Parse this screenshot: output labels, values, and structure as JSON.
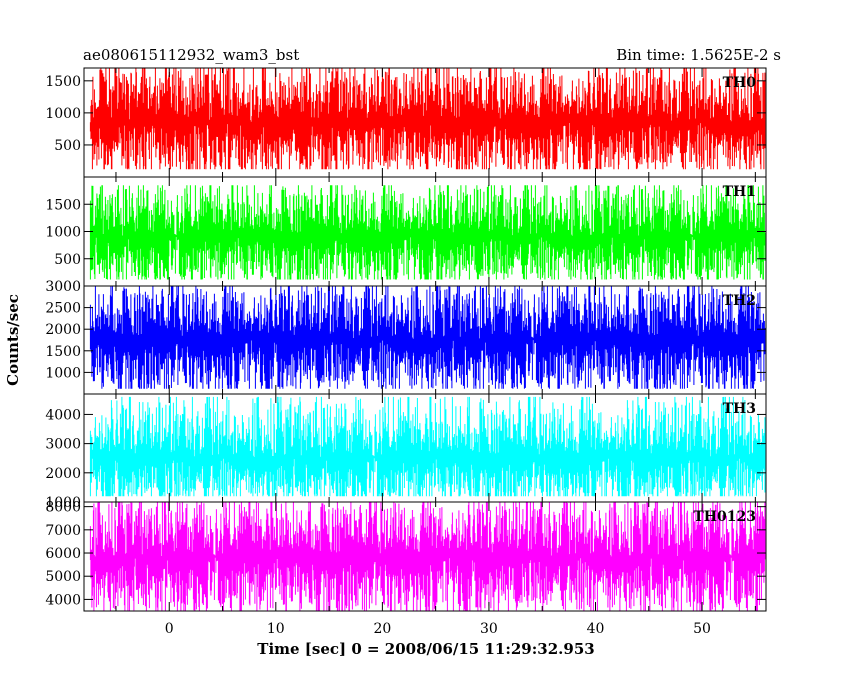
{
  "chart_data": {
    "type": "line",
    "title": "ae080615112932_wam3_bst",
    "subtitle": "Bin time: 1.5625E-2 s",
    "xlabel": "Time [sec] 0 = 2008/06/15 11:29:32.953",
    "ylabel": "Counts/sec",
    "xlim": [
      -8,
      56
    ],
    "x_ticks": [
      0,
      10,
      20,
      30,
      40,
      50
    ],
    "grid": false,
    "panels": [
      {
        "name": "TH0",
        "color": "#ff0000",
        "ylim": [
          0,
          1700
        ],
        "y_ticks": [
          500,
          1000,
          1500
        ],
        "mean": 850,
        "low": 120,
        "high": 1700,
        "spread": 0.55
      },
      {
        "name": "TH1",
        "color": "#00ff00",
        "ylim": [
          0,
          2000
        ],
        "y_ticks": [
          500,
          1000,
          1500
        ],
        "mean": 900,
        "low": 120,
        "high": 1850,
        "spread": 0.55
      },
      {
        "name": "TH2",
        "color": "#0000ff",
        "ylim": [
          500,
          3000
        ],
        "y_ticks": [
          1000,
          1500,
          2000,
          2500,
          3000
        ],
        "mean": 1750,
        "low": 620,
        "high": 3000,
        "spread": 0.55
      },
      {
        "name": "TH3",
        "color": "#00ffff",
        "ylim": [
          1000,
          4700
        ],
        "y_ticks": [
          1000,
          2000,
          3000,
          4000
        ],
        "mean": 2500,
        "low": 1200,
        "high": 4600,
        "spread": 0.55
      },
      {
        "name": "TH0123",
        "color": "#ff00ff",
        "ylim": [
          3500,
          8200
        ],
        "y_ticks": [
          4000,
          5000,
          6000,
          7000,
          8000
        ],
        "mean": 5800,
        "low": 3500,
        "high": 8200,
        "spread": 0.55
      }
    ]
  }
}
